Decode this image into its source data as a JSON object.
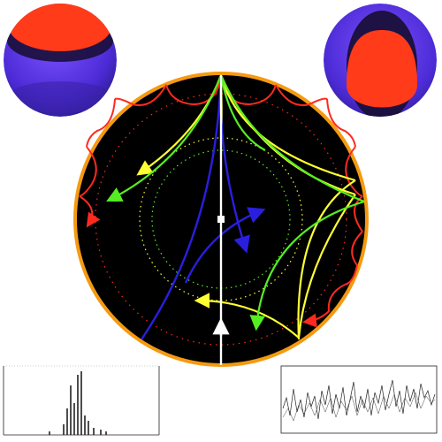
{
  "figure": {
    "background": "#ffffff",
    "disk_fill": "#000000",
    "disk_border": "#f59a10",
    "colors": {
      "red": "#ff2a1f",
      "yellow": "#ffff33",
      "green": "#55ee22",
      "blue": "#2a1fdd",
      "white": "#ffffff",
      "sphere_hot": "#ff3b1a",
      "sphere_cool": "#4c2bd6",
      "sphere_dark": "#1a0f3a",
      "plot_ink": "#222222"
    }
  },
  "spheres": [
    {
      "name": "sphere-top-left",
      "hot_region": "top-cap"
    },
    {
      "name": "sphere-top-right",
      "hot_region": "bottom-lobe"
    }
  ],
  "histograms": [
    {
      "name": "spectrum-left",
      "style": "sparse-peaks"
    },
    {
      "name": "spectrum-right",
      "style": "noisy-band"
    }
  ]
}
